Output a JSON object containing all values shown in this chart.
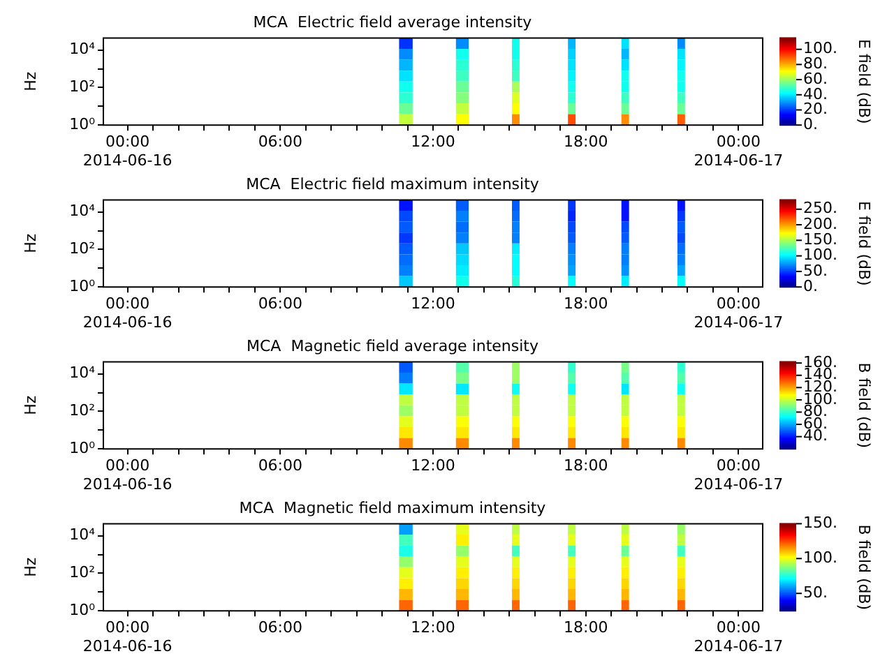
{
  "chart_data": [
    {
      "type": "heatmap",
      "title": "MCA  Electric field average intensity",
      "ylabel": "Hz",
      "clabel": "E field (dB)",
      "log": "y",
      "x": [
        "2014-06-16T10:24",
        "2014-06-16T10:56",
        "2014-06-16T11:28",
        "2014-06-16T12:39",
        "2014-06-16T13:09",
        "2014-06-16T13:39",
        "2014-06-16T14:57",
        "2014-06-16T15:15",
        "2014-06-16T15:33",
        "2014-06-16T17:09",
        "2014-06-16T17:27",
        "2014-06-16T17:45",
        "2014-06-16T19:15",
        "2014-06-16T19:33",
        "2014-06-16T19:51",
        "2014-06-16T21:27",
        "2014-06-16T21:45",
        "2014-06-16T22:03"
      ],
      "cells": [
        [
          null,
          20,
          null,
          null,
          30,
          null,
          null,
          45,
          null,
          null,
          35,
          null,
          null,
          40,
          null,
          null,
          30,
          null
        ],
        [
          null,
          30,
          null,
          null,
          45,
          null,
          null,
          45,
          null,
          null,
          38,
          null,
          null,
          35,
          null,
          null,
          40,
          null
        ],
        [
          null,
          35,
          null,
          null,
          48,
          null,
          null,
          48,
          null,
          null,
          40,
          null,
          null,
          40,
          null,
          null,
          42,
          null
        ],
        [
          null,
          40,
          null,
          null,
          50,
          null,
          null,
          50,
          null,
          null,
          42,
          null,
          null,
          45,
          null,
          null,
          45,
          null
        ],
        [
          null,
          45,
          null,
          null,
          55,
          null,
          null,
          62,
          null,
          null,
          45,
          null,
          null,
          45,
          null,
          null,
          45,
          null
        ],
        [
          null,
          48,
          null,
          null,
          58,
          null,
          null,
          68,
          null,
          null,
          48,
          null,
          null,
          50,
          null,
          null,
          50,
          null
        ],
        [
          null,
          55,
          null,
          null,
          65,
          null,
          null,
          72,
          null,
          null,
          55,
          null,
          null,
          55,
          null,
          null,
          55,
          null
        ],
        [
          null,
          65,
          null,
          null,
          72,
          null,
          null,
          85,
          null,
          null,
          92,
          null,
          null,
          85,
          null,
          null,
          90,
          null
        ]
      ],
      "clim": [
        0,
        115
      ],
      "cticks": [
        {
          "value": 0,
          "label": "0."
        },
        {
          "value": 20,
          "label": "20."
        },
        {
          "value": 40,
          "label": "40."
        },
        {
          "value": 60,
          "label": "60."
        },
        {
          "value": 80,
          "label": "80."
        },
        {
          "value": 100,
          "label": "100."
        }
      ],
      "xlim": [
        "2014-06-15T23:03",
        "2014-06-17T00:57"
      ],
      "xticks": [
        {
          "value": "2014-06-16T00:00",
          "label": "00:00\n2014-06-16"
        },
        {
          "value": "2014-06-16T01:00",
          "label": null
        },
        {
          "value": "2014-06-16T02:00",
          "label": null
        },
        {
          "value": "2014-06-16T03:00",
          "label": null
        },
        {
          "value": "2014-06-16T04:00",
          "label": null
        },
        {
          "value": "2014-06-16T05:00",
          "label": null
        },
        {
          "value": "2014-06-16T06:00",
          "label": "06:00"
        },
        {
          "value": "2014-06-16T07:00",
          "label": null
        },
        {
          "value": "2014-06-16T08:00",
          "label": null
        },
        {
          "value": "2014-06-16T09:00",
          "label": null
        },
        {
          "value": "2014-06-16T10:00",
          "label": null
        },
        {
          "value": "2014-06-16T11:00",
          "label": null
        },
        {
          "value": "2014-06-16T12:00",
          "label": "12:00"
        },
        {
          "value": "2014-06-16T13:00",
          "label": null
        },
        {
          "value": "2014-06-16T14:00",
          "label": null
        },
        {
          "value": "2014-06-16T15:00",
          "label": null
        },
        {
          "value": "2014-06-16T16:00",
          "label": null
        },
        {
          "value": "2014-06-16T17:00",
          "label": null
        },
        {
          "value": "2014-06-16T18:00",
          "label": "18:00"
        },
        {
          "value": "2014-06-16T19:00",
          "label": null
        },
        {
          "value": "2014-06-16T20:00",
          "label": null
        },
        {
          "value": "2014-06-16T21:00",
          "label": null
        },
        {
          "value": "2014-06-16T22:00",
          "label": null
        },
        {
          "value": "2014-06-16T23:00",
          "label": null
        },
        {
          "value": "2014-06-17T00:00",
          "label": "00:00\n2014-06-17"
        }
      ],
      "ylim": [
        1,
        44000
      ],
      "yticks": [
        {
          "value": 1,
          "label": "10⁰"
        },
        {
          "value": 10,
          "label": null
        },
        {
          "value": 100,
          "label": "10²"
        },
        {
          "value": 1000,
          "label": null
        },
        {
          "value": 10000,
          "label": "10⁴"
        }
      ]
    },
    {
      "type": "heatmap",
      "title": "MCA  Electric field maximum intensity",
      "ylabel": "Hz",
      "clabel": "E field (dB)",
      "log": "y",
      "x": [
        "2014-06-16T10:24",
        "2014-06-16T10:56",
        "2014-06-16T11:28",
        "2014-06-16T12:39",
        "2014-06-16T13:09",
        "2014-06-16T13:39",
        "2014-06-16T14:57",
        "2014-06-16T15:15",
        "2014-06-16T15:33",
        "2014-06-16T17:09",
        "2014-06-16T17:27",
        "2014-06-16T17:45",
        "2014-06-16T19:15",
        "2014-06-16T19:33",
        "2014-06-16T19:51",
        "2014-06-16T21:27",
        "2014-06-16T21:45",
        "2014-06-16T22:03"
      ],
      "cells": [
        [
          null,
          40,
          null,
          null,
          60,
          null,
          null,
          60,
          null,
          null,
          50,
          null,
          null,
          40,
          null,
          null,
          40,
          null
        ],
        [
          null,
          55,
          null,
          null,
          70,
          null,
          null,
          65,
          null,
          null,
          45,
          null,
          null,
          40,
          null,
          null,
          50,
          null
        ],
        [
          null,
          60,
          null,
          null,
          65,
          null,
          null,
          70,
          null,
          null,
          55,
          null,
          null,
          55,
          null,
          null,
          60,
          null
        ],
        [
          null,
          50,
          null,
          null,
          70,
          null,
          null,
          70,
          null,
          null,
          60,
          null,
          null,
          60,
          null,
          null,
          55,
          null
        ],
        [
          null,
          60,
          null,
          null,
          90,
          null,
          null,
          100,
          null,
          null,
          70,
          null,
          null,
          70,
          null,
          null,
          65,
          null
        ],
        [
          null,
          65,
          null,
          null,
          95,
          null,
          null,
          105,
          null,
          null,
          75,
          null,
          null,
          70,
          null,
          null,
          70,
          null
        ],
        [
          null,
          70,
          null,
          null,
          100,
          null,
          null,
          105,
          null,
          null,
          80,
          null,
          null,
          75,
          null,
          null,
          80,
          null
        ],
        [
          null,
          90,
          null,
          null,
          110,
          null,
          null,
          115,
          null,
          null,
          105,
          null,
          null,
          100,
          null,
          null,
          105,
          null
        ]
      ],
      "clim": [
        0,
        280
      ],
      "cticks": [
        {
          "value": 0,
          "label": "0."
        },
        {
          "value": 50,
          "label": "50."
        },
        {
          "value": 100,
          "label": "100."
        },
        {
          "value": 150,
          "label": "150."
        },
        {
          "value": 200,
          "label": "200."
        },
        {
          "value": 250,
          "label": "250."
        }
      ],
      "xlim": [
        "2014-06-15T23:03",
        "2014-06-17T00:57"
      ],
      "xticks": [
        {
          "value": "2014-06-16T00:00",
          "label": "00:00\n2014-06-16"
        },
        {
          "value": "2014-06-16T01:00",
          "label": null
        },
        {
          "value": "2014-06-16T02:00",
          "label": null
        },
        {
          "value": "2014-06-16T03:00",
          "label": null
        },
        {
          "value": "2014-06-16T04:00",
          "label": null
        },
        {
          "value": "2014-06-16T05:00",
          "label": null
        },
        {
          "value": "2014-06-16T06:00",
          "label": "06:00"
        },
        {
          "value": "2014-06-16T07:00",
          "label": null
        },
        {
          "value": "2014-06-16T08:00",
          "label": null
        },
        {
          "value": "2014-06-16T09:00",
          "label": null
        },
        {
          "value": "2014-06-16T10:00",
          "label": null
        },
        {
          "value": "2014-06-16T11:00",
          "label": null
        },
        {
          "value": "2014-06-16T12:00",
          "label": "12:00"
        },
        {
          "value": "2014-06-16T13:00",
          "label": null
        },
        {
          "value": "2014-06-16T14:00",
          "label": null
        },
        {
          "value": "2014-06-16T15:00",
          "label": null
        },
        {
          "value": "2014-06-16T16:00",
          "label": null
        },
        {
          "value": "2014-06-16T17:00",
          "label": null
        },
        {
          "value": "2014-06-16T18:00",
          "label": "18:00"
        },
        {
          "value": "2014-06-16T19:00",
          "label": null
        },
        {
          "value": "2014-06-16T20:00",
          "label": null
        },
        {
          "value": "2014-06-16T21:00",
          "label": null
        },
        {
          "value": "2014-06-16T22:00",
          "label": null
        },
        {
          "value": "2014-06-16T23:00",
          "label": null
        },
        {
          "value": "2014-06-17T00:00",
          "label": "00:00\n2014-06-17"
        }
      ],
      "ylim": [
        1,
        44000
      ],
      "yticks": [
        {
          "value": 1,
          "label": "10⁰"
        },
        {
          "value": 10,
          "label": null
        },
        {
          "value": 100,
          "label": "10²"
        },
        {
          "value": 1000,
          "label": null
        },
        {
          "value": 10000,
          "label": "10⁴"
        }
      ]
    },
    {
      "type": "heatmap",
      "title": "MCA  Magnetic field average intensity",
      "ylabel": "Hz",
      "clabel": "B field (dB)",
      "log": "y",
      "x": [
        "2014-06-16T10:24",
        "2014-06-16T10:56",
        "2014-06-16T11:28",
        "2014-06-16T12:39",
        "2014-06-16T13:09",
        "2014-06-16T13:39",
        "2014-06-16T14:57",
        "2014-06-16T15:15",
        "2014-06-16T15:33",
        "2014-06-16T17:09",
        "2014-06-16T17:27",
        "2014-06-16T17:45",
        "2014-06-16T19:15",
        "2014-06-16T19:33",
        "2014-06-16T19:51",
        "2014-06-16T21:27",
        "2014-06-16T21:45",
        "2014-06-16T22:03"
      ],
      "cells": [
        [
          null,
          50,
          null,
          null,
          85,
          null,
          null,
          95,
          null,
          null,
          80,
          null,
          null,
          90,
          null,
          null,
          80,
          null
        ],
        [
          null,
          55,
          null,
          null,
          90,
          null,
          null,
          95,
          null,
          null,
          85,
          null,
          null,
          85,
          null,
          null,
          85,
          null
        ],
        [
          null,
          70,
          null,
          null,
          70,
          null,
          null,
          75,
          null,
          null,
          75,
          null,
          null,
          70,
          null,
          null,
          75,
          null
        ],
        [
          null,
          100,
          null,
          null,
          100,
          null,
          null,
          100,
          null,
          null,
          100,
          null,
          null,
          100,
          null,
          null,
          100,
          null
        ],
        [
          null,
          95,
          null,
          null,
          100,
          null,
          null,
          100,
          null,
          null,
          100,
          null,
          null,
          100,
          null,
          null,
          100,
          null
        ],
        [
          null,
          105,
          null,
          null,
          108,
          null,
          null,
          108,
          null,
          null,
          108,
          null,
          null,
          108,
          null,
          null,
          108,
          null
        ],
        [
          null,
          112,
          null,
          null,
          112,
          null,
          null,
          112,
          null,
          null,
          112,
          null,
          null,
          112,
          null,
          null,
          112,
          null
        ],
        [
          null,
          125,
          null,
          null,
          125,
          null,
          null,
          125,
          null,
          null,
          125,
          null,
          null,
          125,
          null,
          null,
          125,
          null
        ]
      ],
      "clim": [
        20,
        162
      ],
      "cticks": [
        {
          "value": 40,
          "label": "40."
        },
        {
          "value": 60,
          "label": "60."
        },
        {
          "value": 80,
          "label": "80."
        },
        {
          "value": 100,
          "label": "100."
        },
        {
          "value": 120,
          "label": "120."
        },
        {
          "value": 140,
          "label": "140."
        },
        {
          "value": 160,
          "label": "160."
        }
      ],
      "xlim": [
        "2014-06-15T23:03",
        "2014-06-17T00:57"
      ],
      "xticks": [
        {
          "value": "2014-06-16T00:00",
          "label": "00:00\n2014-06-16"
        },
        {
          "value": "2014-06-16T01:00",
          "label": null
        },
        {
          "value": "2014-06-16T02:00",
          "label": null
        },
        {
          "value": "2014-06-16T03:00",
          "label": null
        },
        {
          "value": "2014-06-16T04:00",
          "label": null
        },
        {
          "value": "2014-06-16T05:00",
          "label": null
        },
        {
          "value": "2014-06-16T06:00",
          "label": "06:00"
        },
        {
          "value": "2014-06-16T07:00",
          "label": null
        },
        {
          "value": "2014-06-16T08:00",
          "label": null
        },
        {
          "value": "2014-06-16T09:00",
          "label": null
        },
        {
          "value": "2014-06-16T10:00",
          "label": null
        },
        {
          "value": "2014-06-16T11:00",
          "label": null
        },
        {
          "value": "2014-06-16T12:00",
          "label": "12:00"
        },
        {
          "value": "2014-06-16T13:00",
          "label": null
        },
        {
          "value": "2014-06-16T14:00",
          "label": null
        },
        {
          "value": "2014-06-16T15:00",
          "label": null
        },
        {
          "value": "2014-06-16T16:00",
          "label": null
        },
        {
          "value": "2014-06-16T17:00",
          "label": null
        },
        {
          "value": "2014-06-16T18:00",
          "label": "18:00"
        },
        {
          "value": "2014-06-16T19:00",
          "label": null
        },
        {
          "value": "2014-06-16T20:00",
          "label": null
        },
        {
          "value": "2014-06-16T21:00",
          "label": null
        },
        {
          "value": "2014-06-16T22:00",
          "label": null
        },
        {
          "value": "2014-06-16T23:00",
          "label": null
        },
        {
          "value": "2014-06-17T00:00",
          "label": "00:00\n2014-06-17"
        }
      ],
      "ylim": [
        1,
        44000
      ],
      "yticks": [
        {
          "value": 1,
          "label": "10⁰"
        },
        {
          "value": 10,
          "label": null
        },
        {
          "value": 100,
          "label": "10²"
        },
        {
          "value": 1000,
          "label": null
        },
        {
          "value": 10000,
          "label": "10⁴"
        }
      ]
    },
    {
      "type": "heatmap",
      "title": "MCA  Magnetic field maximum intensity",
      "ylabel": "Hz",
      "clabel": "B field (dB)",
      "log": "y",
      "x": [
        "2014-06-16T10:24",
        "2014-06-16T10:56",
        "2014-06-16T11:28",
        "2014-06-16T12:39",
        "2014-06-16T13:09",
        "2014-06-16T13:39",
        "2014-06-16T14:57",
        "2014-06-16T15:15",
        "2014-06-16T15:33",
        "2014-06-16T17:09",
        "2014-06-16T17:27",
        "2014-06-16T17:45",
        "2014-06-16T19:15",
        "2014-06-16T19:33",
        "2014-06-16T19:51",
        "2014-06-16T21:27",
        "2014-06-16T21:45",
        "2014-06-16T22:03"
      ],
      "cells": [
        [
          null,
          60,
          null,
          null,
          100,
          null,
          null,
          95,
          null,
          null,
          95,
          null,
          null,
          95,
          null,
          null,
          90,
          null
        ],
        [
          null,
          80,
          null,
          null,
          105,
          null,
          null,
          100,
          null,
          null,
          100,
          null,
          null,
          100,
          null,
          null,
          95,
          null
        ],
        [
          null,
          75,
          null,
          null,
          90,
          null,
          null,
          80,
          null,
          null,
          80,
          null,
          null,
          85,
          null,
          null,
          80,
          null
        ],
        [
          null,
          90,
          null,
          null,
          100,
          null,
          null,
          100,
          null,
          null,
          100,
          null,
          null,
          100,
          null,
          null,
          100,
          null
        ],
        [
          null,
          100,
          null,
          null,
          105,
          null,
          null,
          105,
          null,
          null,
          105,
          null,
          null,
          105,
          null,
          null,
          105,
          null
        ],
        [
          null,
          105,
          null,
          null,
          108,
          null,
          null,
          108,
          null,
          null,
          108,
          null,
          null,
          108,
          null,
          null,
          108,
          null
        ],
        [
          null,
          112,
          null,
          null,
          112,
          null,
          null,
          112,
          null,
          null,
          112,
          null,
          null,
          112,
          null,
          null,
          112,
          null
        ],
        [
          null,
          122,
          null,
          null,
          122,
          null,
          null,
          122,
          null,
          null,
          122,
          null,
          null,
          122,
          null,
          null,
          122,
          null
        ]
      ],
      "clim": [
        25,
        150
      ],
      "cticks": [
        {
          "value": 50,
          "label": "50."
        },
        {
          "value": 100,
          "label": "100."
        },
        {
          "value": 150,
          "label": "150."
        }
      ],
      "xlim": [
        "2014-06-15T23:03",
        "2014-06-17T00:57"
      ],
      "xticks": [
        {
          "value": "2014-06-16T00:00",
          "label": "00:00\n2014-06-16"
        },
        {
          "value": "2014-06-16T01:00",
          "label": null
        },
        {
          "value": "2014-06-16T02:00",
          "label": null
        },
        {
          "value": "2014-06-16T03:00",
          "label": null
        },
        {
          "value": "2014-06-16T04:00",
          "label": null
        },
        {
          "value": "2014-06-16T05:00",
          "label": null
        },
        {
          "value": "2014-06-16T06:00",
          "label": "06:00"
        },
        {
          "value": "2014-06-16T07:00",
          "label": null
        },
        {
          "value": "2014-06-16T08:00",
          "label": null
        },
        {
          "value": "2014-06-16T09:00",
          "label": null
        },
        {
          "value": "2014-06-16T10:00",
          "label": null
        },
        {
          "value": "2014-06-16T11:00",
          "label": null
        },
        {
          "value": "2014-06-16T12:00",
          "label": "12:00"
        },
        {
          "value": "2014-06-16T13:00",
          "label": null
        },
        {
          "value": "2014-06-16T14:00",
          "label": null
        },
        {
          "value": "2014-06-16T15:00",
          "label": null
        },
        {
          "value": "2014-06-16T16:00",
          "label": null
        },
        {
          "value": "2014-06-16T17:00",
          "label": null
        },
        {
          "value": "2014-06-16T18:00",
          "label": "18:00"
        },
        {
          "value": "2014-06-16T19:00",
          "label": null
        },
        {
          "value": "2014-06-16T20:00",
          "label": null
        },
        {
          "value": "2014-06-16T21:00",
          "label": null
        },
        {
          "value": "2014-06-16T22:00",
          "label": null
        },
        {
          "value": "2014-06-16T23:00",
          "label": null
        },
        {
          "value": "2014-06-17T00:00",
          "label": "00:00\n2014-06-17"
        }
      ],
      "ylim": [
        1,
        44000
      ],
      "yticks": [
        {
          "value": 1,
          "label": "10⁰"
        },
        {
          "value": 10,
          "label": null
        },
        {
          "value": 100,
          "label": "10²"
        },
        {
          "value": 1000,
          "label": null
        },
        {
          "value": 10000,
          "label": "10⁴"
        }
      ]
    }
  ]
}
